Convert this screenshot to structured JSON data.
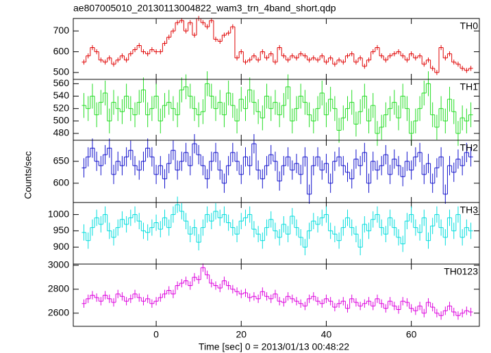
{
  "chart_data": {
    "type": "step",
    "title": "ae807005010_20130113004822_wam3_trn_4band_short.qdp",
    "x_label": "Time [sec] 0 = 2013/01/13 00:48:22",
    "y_label": "Counts/sec",
    "xlim": [
      -19.5,
      76
    ],
    "xticks": [
      0,
      20,
      40,
      60
    ],
    "x": [
      -17,
      -16,
      -15,
      -14,
      -13,
      -12,
      -11,
      -10,
      -9,
      -8,
      -7,
      -6,
      -5,
      -4,
      -3,
      -2,
      -1,
      0,
      1,
      2,
      3,
      4,
      5,
      6,
      7,
      8,
      9,
      10,
      11,
      12,
      13,
      14,
      15,
      16,
      17,
      18,
      19,
      20,
      21,
      22,
      23,
      24,
      25,
      26,
      27,
      28,
      29,
      30,
      31,
      32,
      33,
      34,
      35,
      36,
      37,
      38,
      39,
      40,
      41,
      42,
      43,
      44,
      45,
      46,
      47,
      48,
      49,
      50,
      51,
      52,
      53,
      54,
      55,
      56,
      57,
      58,
      59,
      60,
      61,
      62,
      63,
      64,
      65,
      66,
      67,
      68,
      69,
      70,
      71,
      72,
      73,
      74
    ],
    "series": [
      {
        "name": "TH0",
        "color": "#e00000",
        "error": 12,
        "ylim": [
          467,
          760
        ],
        "yticks": [
          500,
          600,
          700
        ],
        "values": [
          550,
          580,
          620,
          600,
          560,
          550,
          570,
          540,
          560,
          580,
          560,
          590,
          610,
          630,
          600,
          590,
          610,
          600,
          600,
          640,
          670,
          700,
          740,
          750,
          700,
          740,
          680,
          760,
          740,
          720,
          750,
          660,
          650,
          680,
          690,
          720,
          570,
          600,
          550,
          560,
          580,
          560,
          600,
          570,
          590,
          550,
          620,
          580,
          560,
          580,
          570,
          590,
          580,
          560,
          570,
          560,
          580,
          550,
          570,
          540,
          560,
          550,
          580,
          590,
          550,
          570,
          530,
          560,
          600,
          620,
          580,
          560,
          580,
          590,
          600,
          580,
          560,
          590,
          570,
          580,
          540,
          560,
          520,
          500,
          620,
          570,
          590,
          550,
          540,
          520,
          510,
          520
        ]
      },
      {
        "name": "TH1",
        "color": "#22dd22",
        "error": 20,
        "ylim": [
          469,
          567
        ],
        "yticks": [
          480,
          500,
          520,
          540,
          560
        ],
        "values": [
          525,
          520,
          540,
          510,
          530,
          545,
          500,
          530,
          520,
          515,
          540,
          520,
          510,
          530,
          550,
          510,
          520,
          540,
          500,
          525,
          530,
          520,
          510,
          550,
          555,
          540,
          520,
          510,
          515,
          560,
          540,
          520,
          530,
          510,
          545,
          525,
          500,
          535,
          520,
          550,
          530,
          515,
          505,
          540,
          520,
          530,
          510,
          525,
          555,
          500,
          520,
          540,
          530,
          510,
          500,
          520,
          545,
          510,
          535,
          520,
          485,
          505,
          520,
          530,
          495,
          515,
          540,
          500,
          525,
          480,
          490,
          510,
          520,
          530,
          505,
          540,
          520,
          480,
          500,
          520,
          545,
          560,
          510,
          490,
          520,
          500,
          535,
          515,
          480,
          505,
          500,
          510
        ]
      },
      {
        "name": "TH2",
        "color": "#1010cc",
        "error": 22,
        "ylim": [
          556,
          698
        ],
        "yticks": [
          600,
          650
        ],
        "values": [
          635,
          660,
          680,
          650,
          640,
          665,
          680,
          620,
          650,
          640,
          660,
          675,
          640,
          630,
          650,
          680,
          660,
          620,
          640,
          610,
          645,
          675,
          630,
          650,
          670,
          640,
          690,
          665,
          640,
          610,
          650,
          670,
          630,
          600,
          640,
          670,
          650,
          620,
          660,
          640,
          690,
          630,
          610,
          640,
          665,
          650,
          605,
          640,
          660,
          630,
          645,
          620,
          660,
          575,
          640,
          660,
          630,
          645,
          600,
          650,
          660,
          640,
          625,
          610,
          655,
          640,
          670,
          600,
          650,
          630,
          640,
          665,
          620,
          655,
          640,
          615,
          650,
          630,
          660,
          670,
          620,
          645,
          600,
          635,
          660,
          575,
          640,
          625,
          655,
          640,
          670,
          660
        ]
      },
      {
        "name": "TH3",
        "color": "#00dddd",
        "error": 25,
        "ylim": [
          848,
          1037
        ],
        "yticks": [
          900,
          950,
          1000
        ],
        "values": [
          945,
          920,
          960,
          990,
          970,
          1000,
          950,
          930,
          960,
          985,
          970,
          990,
          1000,
          980,
          950,
          945,
          960,
          975,
          955,
          990,
          960,
          1000,
          1030,
          1010,
          980,
          940,
          960,
          915,
          960,
          1000,
          980,
          1010,
          990,
          1000,
          975,
          960,
          940,
          980,
          990,
          1000,
          955,
          940,
          920,
          960,
          985,
          950,
          930,
          970,
          940,
          995,
          960,
          930,
          900,
          950,
          980,
          970,
          990,
          1000,
          950,
          940,
          920,
          960,
          990,
          960,
          940,
          900,
          970,
          950,
          985,
          1000,
          960,
          940,
          990,
          960,
          930,
          910,
          980,
          1000,
          960,
          945,
          990,
          920,
          965,
          1000,
          960,
          930,
          990,
          950,
          1000,
          930,
          960,
          950
        ]
      },
      {
        "name": "TH0123",
        "color": "#dd00dd",
        "error": 35,
        "ylim": [
          2490,
          3010
        ],
        "yticks": [
          2600,
          2800,
          3000
        ],
        "values": [
          2680,
          2720,
          2750,
          2730,
          2700,
          2750,
          2720,
          2690,
          2760,
          2740,
          2700,
          2720,
          2760,
          2730,
          2700,
          2720,
          2680,
          2700,
          2730,
          2760,
          2790,
          2760,
          2830,
          2850,
          2870,
          2830,
          2900,
          2880,
          2980,
          2920,
          2850,
          2830,
          2810,
          2870,
          2830,
          2800,
          2780,
          2760,
          2770,
          2730,
          2740,
          2720,
          2780,
          2740,
          2720,
          2760,
          2700,
          2690,
          2740,
          2720,
          2700,
          2680,
          2660,
          2720,
          2740,
          2700,
          2680,
          2720,
          2700,
          2650,
          2680,
          2700,
          2640,
          2720,
          2690,
          2660,
          2680,
          2700,
          2660,
          2720,
          2680,
          2640,
          2700,
          2660,
          2630,
          2700,
          2690,
          2640,
          2620,
          2660,
          2600,
          2690,
          2650,
          2600,
          2580,
          2620,
          2660,
          2610,
          2580,
          2600,
          2620,
          2610
        ]
      }
    ]
  }
}
